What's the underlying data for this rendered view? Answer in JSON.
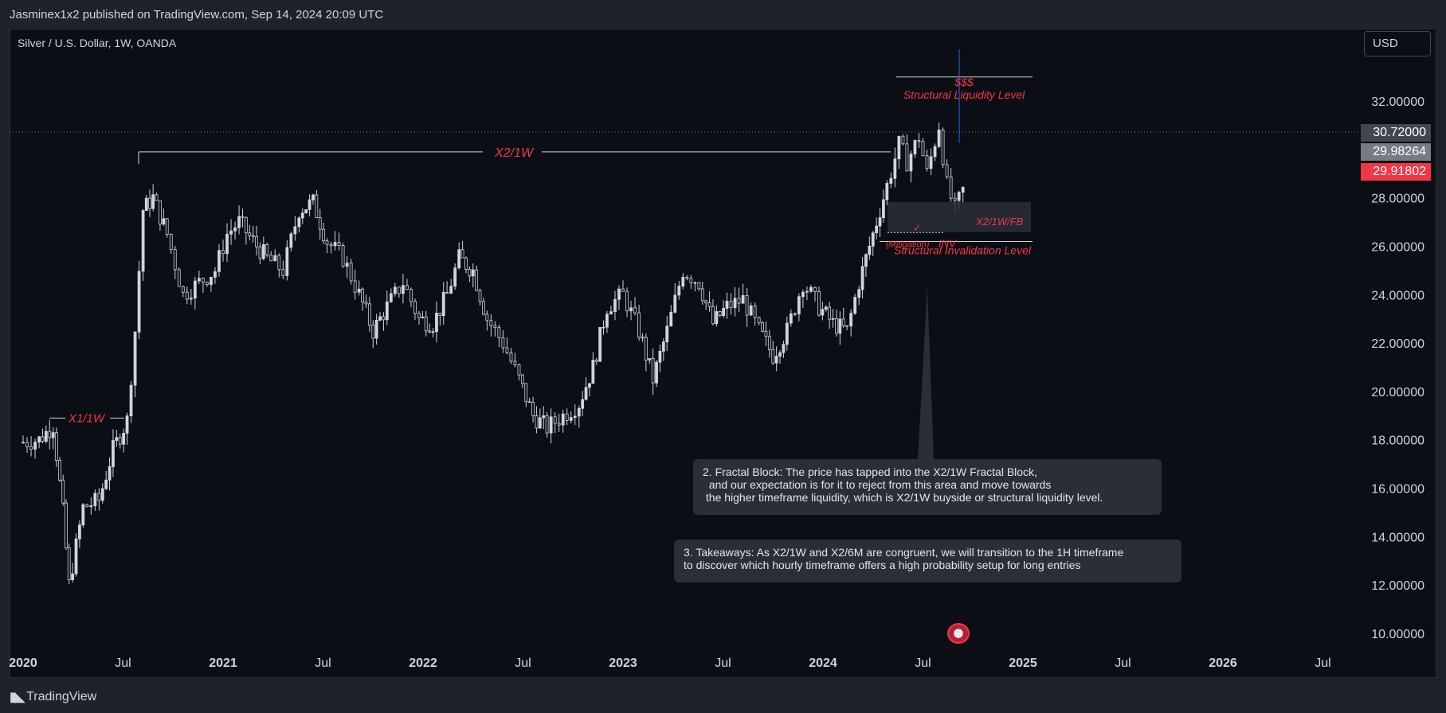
{
  "header": {
    "published_text": "Jasminex1x2 published on TradingView.com, Sep 14, 2024 20:09 UTC"
  },
  "chart_header": {
    "symbol_title": "Silver / U.S. Dollar, 1W, OANDA",
    "currency_button": "USD"
  },
  "footer": {
    "logo_icon": "tradingview-logo-icon",
    "logo_text": "TradingView"
  },
  "price_tags": {
    "close": "30.72000",
    "mid": "29.98264",
    "last": "29.91802"
  },
  "notes": {
    "fractal_block": "2. Fractal Block: The price has tapped into the X2/1W Fractal Block,\n  and our expectation is for it to reject from this area and move towards\n the higher timeframe liquidity, which is X2/1W buyside or structural liquidity level.",
    "takeaways": "3. Takeaways: As X2/1W and X2/6M are congruent, we will transition to the 1H timeframe\nto discover which hourly timeframe offers a high probability setup for long entries"
  },
  "colors": {
    "background": "#0c0e15",
    "candle": "#d1d4dc",
    "annotation_red": "#f23645",
    "level_line": "#d1d4dc"
  },
  "chart_data": {
    "type": "candlestick",
    "title": "Silver / U.S. Dollar, 1W, OANDA",
    "y_axis": {
      "ylim": [
        9,
        34
      ],
      "ticks": [
        "10.00000",
        "12.00000",
        "14.00000",
        "16.00000",
        "18.00000",
        "20.00000",
        "22.00000",
        "24.00000",
        "26.00000",
        "28.00000",
        "32.00000"
      ],
      "tick_values": [
        10,
        12,
        14,
        16,
        18,
        20,
        22,
        24,
        26,
        28,
        32
      ]
    },
    "x_axis": {
      "labels": [
        "2020",
        "Jul",
        "2021",
        "Jul",
        "2022",
        "Jul",
        "2023",
        "Jul",
        "2024",
        "Jul",
        "2025",
        "Jul",
        "2026",
        "Jul"
      ],
      "label_years": [
        2020.0,
        2020.5,
        2021.0,
        2021.5,
        2022.0,
        2022.5,
        2023.0,
        2023.5,
        2024.0,
        2024.5,
        2025.0,
        2025.5,
        2026.0,
        2026.5
      ]
    },
    "series": [
      {
        "values_note": "approximate weekly closes",
        "points": [
          [
            2020.0,
            17.9
          ],
          [
            2020.08,
            18.0
          ],
          [
            2020.15,
            18.6
          ],
          [
            2020.2,
            15.0
          ],
          [
            2020.23,
            12.0
          ],
          [
            2020.3,
            15.2
          ],
          [
            2020.38,
            15.5
          ],
          [
            2020.45,
            17.6
          ],
          [
            2020.52,
            18.8
          ],
          [
            2020.56,
            22.5
          ],
          [
            2020.6,
            27.5
          ],
          [
            2020.65,
            28.0
          ],
          [
            2020.72,
            26.5
          ],
          [
            2020.8,
            24.0
          ],
          [
            2020.88,
            24.5
          ],
          [
            2020.96,
            25.0
          ],
          [
            2021.02,
            26.5
          ],
          [
            2021.08,
            27.0
          ],
          [
            2021.15,
            26.2
          ],
          [
            2021.22,
            25.5
          ],
          [
            2021.3,
            25.0
          ],
          [
            2021.38,
            27.5
          ],
          [
            2021.45,
            27.8
          ],
          [
            2021.52,
            26.2
          ],
          [
            2021.6,
            25.5
          ],
          [
            2021.68,
            24.0
          ],
          [
            2021.75,
            22.5
          ],
          [
            2021.82,
            23.5
          ],
          [
            2021.9,
            24.5
          ],
          [
            2021.98,
            23.0
          ],
          [
            2022.05,
            22.8
          ],
          [
            2022.12,
            24.0
          ],
          [
            2022.18,
            25.5
          ],
          [
            2022.25,
            25.0
          ],
          [
            2022.32,
            23.0
          ],
          [
            2022.4,
            22.0
          ],
          [
            2022.48,
            20.5
          ],
          [
            2022.55,
            19.0
          ],
          [
            2022.62,
            18.5
          ],
          [
            2022.7,
            19.0
          ],
          [
            2022.78,
            19.5
          ],
          [
            2022.85,
            21.0
          ],
          [
            2022.92,
            23.5
          ],
          [
            2023.0,
            24.0
          ],
          [
            2023.08,
            22.5
          ],
          [
            2023.15,
            20.5
          ],
          [
            2023.22,
            22.5
          ],
          [
            2023.3,
            25.0
          ],
          [
            2023.38,
            24.5
          ],
          [
            2023.45,
            22.8
          ],
          [
            2023.52,
            23.5
          ],
          [
            2023.6,
            23.8
          ],
          [
            2023.68,
            22.5
          ],
          [
            2023.75,
            21.5
          ],
          [
            2023.82,
            22.5
          ],
          [
            2023.9,
            24.5
          ],
          [
            2023.98,
            23.5
          ],
          [
            2024.05,
            22.8
          ],
          [
            2024.12,
            22.5
          ],
          [
            2024.18,
            24.5
          ],
          [
            2024.25,
            26.5
          ],
          [
            2024.32,
            28.5
          ],
          [
            2024.38,
            30.2
          ],
          [
            2024.42,
            29.5
          ],
          [
            2024.48,
            30.5
          ],
          [
            2024.52,
            29.0
          ],
          [
            2024.58,
            31.0
          ],
          [
            2024.62,
            28.5
          ],
          [
            2024.66,
            27.5
          ],
          [
            2024.7,
            28.3
          ],
          [
            2024.72,
            30.72
          ]
        ]
      }
    ],
    "annotations": [
      {
        "text": "X1/1W",
        "value": 18.9
      },
      {
        "text": "X2/1W",
        "value": 29.9
      },
      {
        "text": "$$$",
        "value": 32.8
      },
      {
        "text": "Structural Liquidity Level",
        "value": 32.5
      },
      {
        "text": "X2/1W/FB",
        "value": 27.0
      },
      {
        "text": "(Mitigation)",
        "value": 26.3
      },
      {
        "text": "INV",
        "value": 26.3
      },
      {
        "text": "Structural Invalidation Level",
        "value": 26.0
      }
    ],
    "grid": false,
    "legend": "none"
  }
}
